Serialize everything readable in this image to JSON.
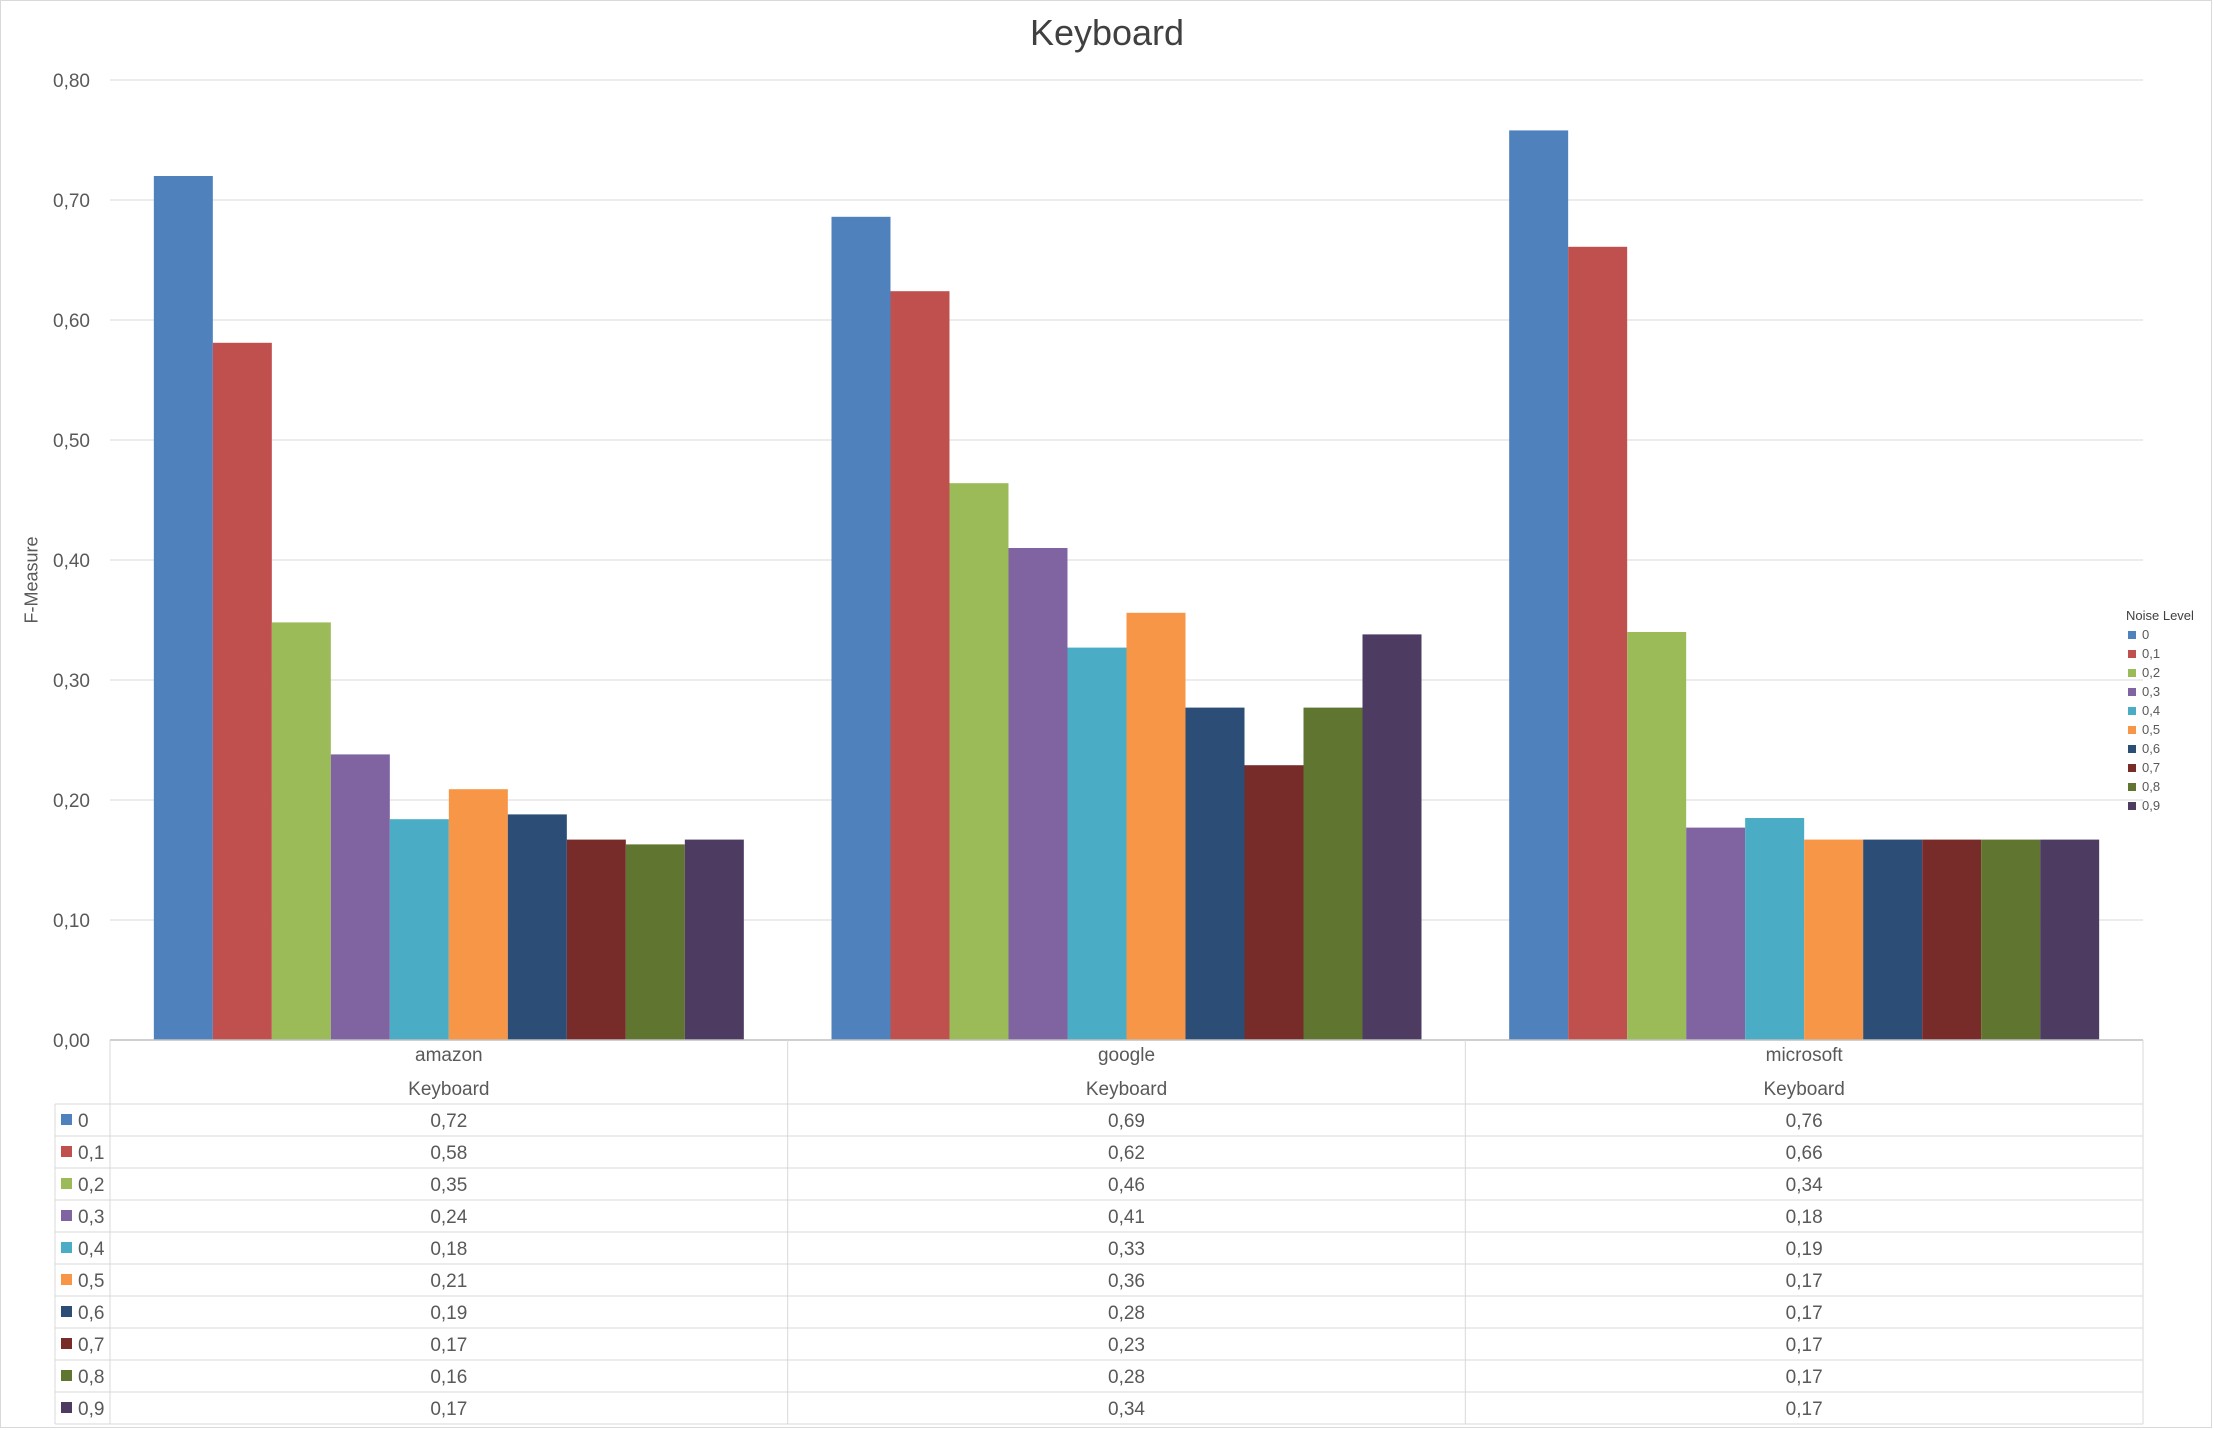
{
  "chart_data": {
    "type": "bar",
    "title": "Keyboard",
    "ylabel": "F-Measure",
    "xlabel": "",
    "ylim": [
      0,
      0.8
    ],
    "yticks": [
      "0,00",
      "0,10",
      "0,20",
      "0,30",
      "0,40",
      "0,50",
      "0,60",
      "0,70",
      "0,80"
    ],
    "grid": true,
    "legend_title": "Noise Level",
    "legend_position": "right",
    "categories": [
      "amazon",
      "google",
      "microsoft"
    ],
    "category_sublabel": "Keyboard",
    "series": [
      {
        "name": "0",
        "color": "#4F81BD",
        "values": [
          0.72,
          0.686,
          0.758
        ],
        "labels": [
          "0,72",
          "0,69",
          "0,76"
        ]
      },
      {
        "name": "0,1",
        "color": "#C0504D",
        "values": [
          0.581,
          0.624,
          0.661
        ],
        "labels": [
          "0,58",
          "0,62",
          "0,66"
        ]
      },
      {
        "name": "0,2",
        "color": "#9BBB59",
        "values": [
          0.348,
          0.464,
          0.34
        ],
        "labels": [
          "0,35",
          "0,46",
          "0,34"
        ]
      },
      {
        "name": "0,3",
        "color": "#8064A2",
        "values": [
          0.238,
          0.41,
          0.177
        ],
        "labels": [
          "0,24",
          "0,41",
          "0,18"
        ]
      },
      {
        "name": "0,4",
        "color": "#4BACC6",
        "values": [
          0.184,
          0.327,
          0.185
        ],
        "labels": [
          "0,18",
          "0,33",
          "0,19"
        ]
      },
      {
        "name": "0,5",
        "color": "#F79646",
        "values": [
          0.209,
          0.356,
          0.167
        ],
        "labels": [
          "0,21",
          "0,36",
          "0,17"
        ]
      },
      {
        "name": "0,6",
        "color": "#2C4D75",
        "values": [
          0.188,
          0.277,
          0.167
        ],
        "labels": [
          "0,19",
          "0,28",
          "0,17"
        ]
      },
      {
        "name": "0,7",
        "color": "#772C2A",
        "values": [
          0.167,
          0.229,
          0.167
        ],
        "labels": [
          "0,17",
          "0,23",
          "0,17"
        ]
      },
      {
        "name": "0,8",
        "color": "#5F7530",
        "values": [
          0.163,
          0.277,
          0.167
        ],
        "labels": [
          "0,16",
          "0,28",
          "0,17"
        ]
      },
      {
        "name": "0,9",
        "color": "#4D3B62",
        "values": [
          0.167,
          0.338,
          0.167
        ],
        "labels": [
          "0,17",
          "0,34",
          "0,17"
        ]
      }
    ]
  }
}
